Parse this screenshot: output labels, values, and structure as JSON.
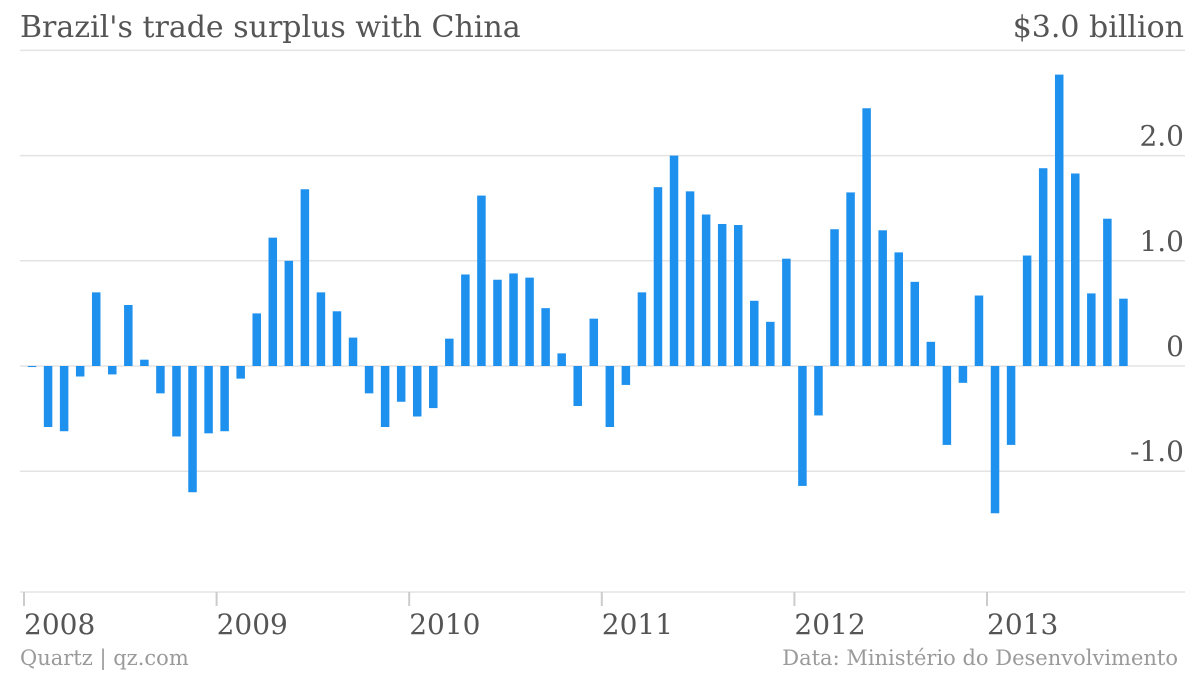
{
  "header": {
    "title": "Brazil's trade surplus with China",
    "ymax_label": "$3.0 billion"
  },
  "footer": {
    "credit": "Quartz | qz.com",
    "source": "Data: Ministério do Desenvolvimento"
  },
  "colors": {
    "bar": "#1e90ee",
    "grid": "#e3e3e3",
    "text": "#555555",
    "footer": "#9a9a9a"
  },
  "chart_data": {
    "type": "bar",
    "title": "Brazil's trade surplus with China",
    "ylabel": "",
    "xlabel": "",
    "unit": "$ billion",
    "ylim": [
      -2.0,
      3.0
    ],
    "yticks": [
      -1.0,
      0,
      1.0,
      2.0,
      3.0
    ],
    "ytick_labels": [
      "-1.0",
      "0",
      "1.0",
      "2.0",
      "$3.0 billion"
    ],
    "x_start": "2008-01",
    "xticks": [
      "2008",
      "2009",
      "2010",
      "2011",
      "2012",
      "2013"
    ],
    "grid": true,
    "values": [
      -0.01,
      -0.58,
      -0.62,
      -0.1,
      0.7,
      -0.08,
      0.58,
      0.06,
      -0.26,
      -0.67,
      -1.2,
      -0.64,
      -0.62,
      -0.12,
      0.5,
      1.22,
      1.0,
      1.68,
      0.7,
      0.52,
      0.27,
      -0.26,
      -0.58,
      -0.34,
      -0.48,
      -0.4,
      0.26,
      0.87,
      1.62,
      0.82,
      0.88,
      0.84,
      0.55,
      0.12,
      -0.38,
      0.45,
      -0.58,
      -0.18,
      0.7,
      1.7,
      2.0,
      1.66,
      1.44,
      1.35,
      1.34,
      0.62,
      0.42,
      1.02,
      -1.14,
      -0.47,
      1.3,
      1.65,
      2.45,
      1.29,
      1.08,
      0.8,
      0.23,
      -0.75,
      -0.16,
      0.67,
      -1.4,
      -0.75,
      1.05,
      1.88,
      2.77,
      1.83,
      0.69,
      1.4,
      0.64
    ]
  }
}
